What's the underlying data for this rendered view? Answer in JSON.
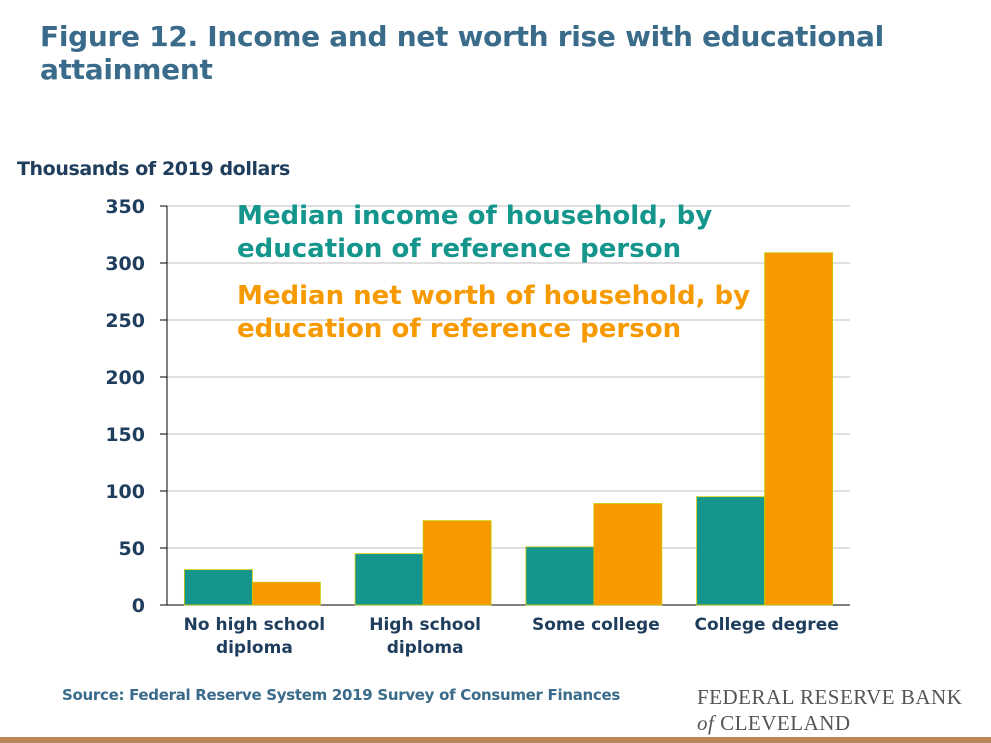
{
  "title": "Figure 12. Income and net worth rise with educational attainment",
  "ylabel": "Thousands of 2019 dollars",
  "source": "Source: Federal Reserve System 2019 Survey of Consumer Finances",
  "logo": {
    "line1": "FEDERAL RESERVE BANK",
    "of": "of",
    "line2": "CLEVELAND"
  },
  "colors": {
    "income": "#14968c",
    "networth": "#f79a00",
    "title": "#3a6b8a",
    "rule": "#b8875a"
  },
  "chart_data": {
    "type": "bar",
    "categories": [
      [
        "No high school",
        "diploma"
      ],
      [
        "High school",
        "diploma"
      ],
      [
        "Some college"
      ],
      [
        "College degree"
      ]
    ],
    "series": [
      {
        "name": "Median income of household, by education of reference person",
        "legend_lines": [
          "Median income of household, by",
          "education of reference person"
        ],
        "color": "#14968c",
        "values": [
          31,
          45,
          51,
          95
        ]
      },
      {
        "name": "Median net worth of household, by education of reference person",
        "legend_lines": [
          "Median net worth of household, by",
          "education of reference person"
        ],
        "color": "#f79a00",
        "values": [
          20,
          74,
          89,
          309
        ]
      }
    ],
    "ylim": [
      0,
      350
    ],
    "yticks": [
      0,
      50,
      100,
      150,
      200,
      250,
      300,
      350
    ],
    "ylabel": "Thousands of 2019 dollars",
    "grid": true,
    "legend_position": "top-left"
  }
}
